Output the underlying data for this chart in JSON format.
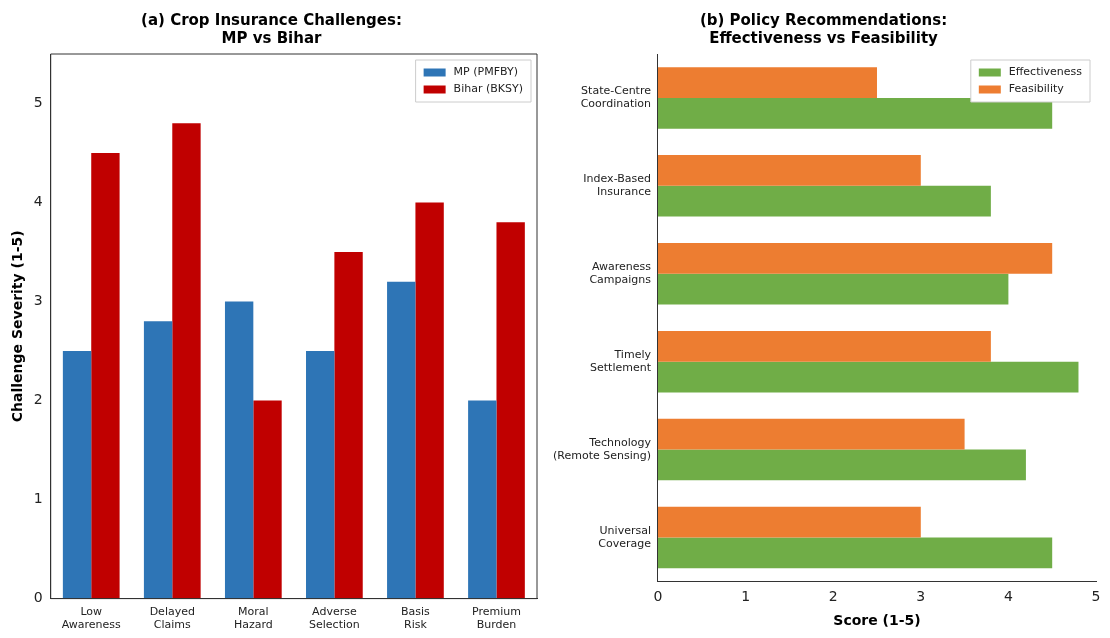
{
  "chart_data": [
    {
      "type": "bar",
      "title": "(a) Crop Insurance Challenges:\nMP vs Bihar",
      "ylabel": "Challenge Severity (1-5)",
      "categories": [
        "Low\nAwareness",
        "Delayed\nClaims",
        "Moral\nHazard",
        "Adverse\nSelection",
        "Basis\nRisk",
        "Premium\nBurden"
      ],
      "series": [
        {
          "name": "MP (PMFBY)",
          "color": "#2e75b6",
          "values": [
            2.5,
            2.8,
            3.0,
            2.5,
            3.2,
            2.0
          ]
        },
        {
          "name": "Bihar (BKSY)",
          "color": "#c00000",
          "values": [
            4.5,
            4.8,
            2.0,
            3.5,
            4.0,
            3.8
          ]
        }
      ],
      "ylim": [
        0,
        5.5
      ],
      "yticks": [
        0,
        1,
        2,
        3,
        4,
        5
      ],
      "legend": "top right",
      "grid": false
    },
    {
      "type": "bar",
      "orientation": "horizontal",
      "title": "(b) Policy Recommendations:\nEffectiveness vs Feasibility",
      "xlabel": "Score (1-5)",
      "categories": [
        "State-Centre\nCoordination",
        "Index-Based\nInsurance",
        "Awareness\nCampaigns",
        "Timely\nSettlement",
        "Technology\n(Remote Sensing)",
        "Universal\nCoverage"
      ],
      "series": [
        {
          "name": "Effectiveness",
          "color": "#70ad47",
          "values": [
            4.5,
            3.8,
            4.0,
            4.8,
            4.2,
            4.5
          ]
        },
        {
          "name": "Feasibility",
          "color": "#ed7d31",
          "values": [
            2.5,
            3.0,
            4.5,
            3.8,
            3.5,
            3.0
          ]
        }
      ],
      "xlim": [
        0,
        5
      ],
      "xticks": [
        0,
        1,
        2,
        3,
        4,
        5
      ],
      "legend": "top right",
      "grid": false
    }
  ]
}
